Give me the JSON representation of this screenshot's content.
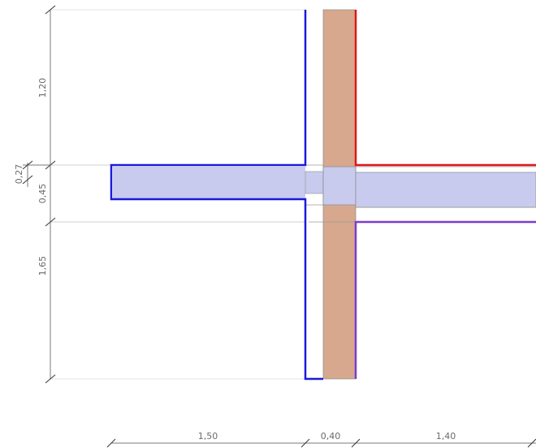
{
  "dimensions": {
    "vertical": [
      "1,20",
      "0,27",
      "0,45",
      "1,65"
    ],
    "horizontal": [
      "1,50",
      "0,40",
      "1,40"
    ]
  },
  "colors": {
    "slab_fill": "#c8cbee",
    "wall_fill": "#d7a88d",
    "blue_line": "#1a1adb",
    "red_line": "#e01616",
    "purple_line": "#7a3ccc",
    "dim_line": "#7a7a7a",
    "dim_text": "#6b6b6b"
  }
}
